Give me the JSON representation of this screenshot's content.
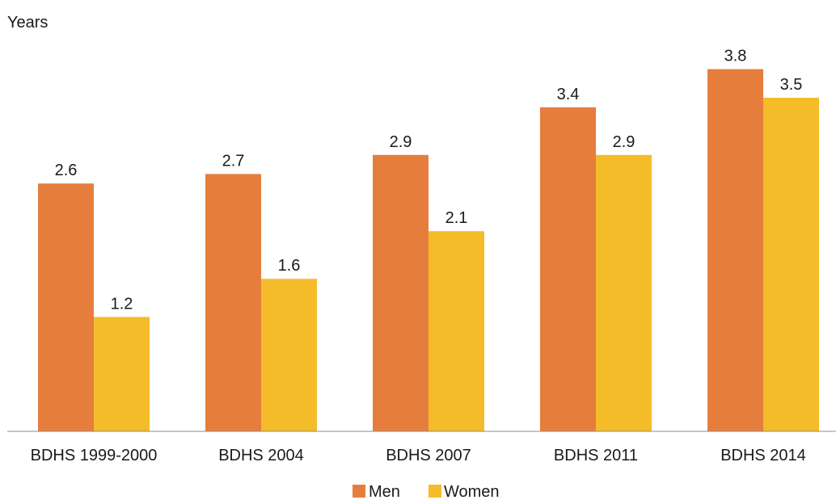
{
  "chart_data": {
    "type": "bar",
    "ylabel": "Years",
    "categories": [
      "BDHS 1999-2000",
      "BDHS 2004",
      "BDHS 2007",
      "BDHS 2011",
      "BDHS 2014"
    ],
    "series": [
      {
        "name": "Men",
        "values": [
          2.6,
          2.7,
          2.9,
          3.4,
          3.8
        ],
        "color": "#E57E3C"
      },
      {
        "name": "Women",
        "values": [
          1.2,
          1.6,
          2.1,
          2.9,
          3.5
        ],
        "color": "#F5BC2A"
      }
    ],
    "ylim": [
      0,
      4
    ],
    "grid": false,
    "legend_position": "bottom-center"
  }
}
